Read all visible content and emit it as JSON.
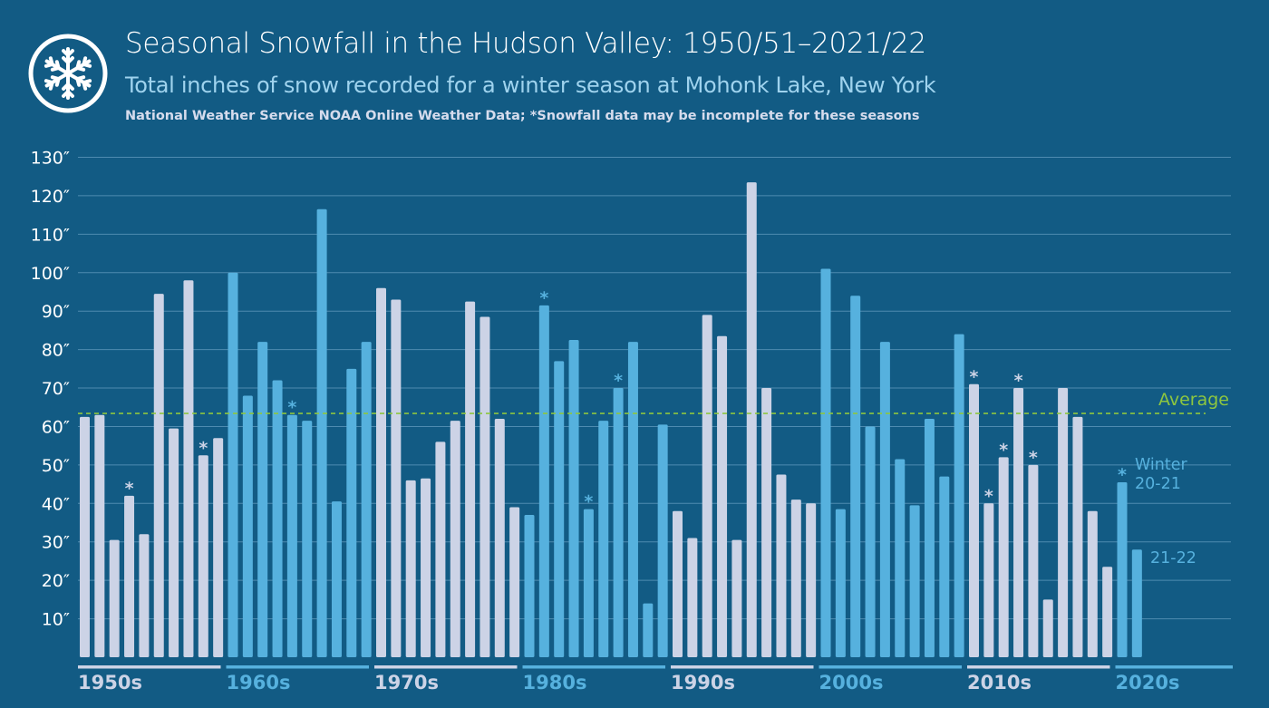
{
  "header": {
    "title": "Seasonal Snowfall in the Hudson Valley: 1950/51–2021/22",
    "subtitle": "Total inches of snow recorded for a winter season at Mohonk Lake, New York",
    "source": "National Weather Service NOAA Online Weather Data; *Snowfall data may be incomplete for these seasons",
    "logo_icon": "snowflake-icon"
  },
  "colors": {
    "background": "#125b84",
    "bar_light": "#ccd3e6",
    "bar_blue": "#56b1de",
    "average_line": "#8dc63f",
    "grid": "#4e8bb0",
    "axis_text": "#ffffff"
  },
  "chart_data": {
    "type": "bar",
    "y_ticks": [
      "10″",
      "20″",
      "30″",
      "40″",
      "50″",
      "60″",
      "70″",
      "80″",
      "90″",
      "100″",
      "110″",
      "120″",
      "130″"
    ],
    "y_tick_values": [
      10,
      20,
      30,
      40,
      50,
      60,
      70,
      80,
      90,
      100,
      110,
      120,
      130
    ],
    "ylim": [
      0,
      130
    ],
    "grid": true,
    "average": {
      "label": "Average",
      "value": 63.4
    },
    "decades": [
      {
        "label": "1950s",
        "color": "light",
        "values": [
          62.5,
          63,
          30.5,
          42,
          32,
          94.5,
          59.5,
          98,
          52.5,
          57
        ],
        "incomplete": [
          false,
          false,
          false,
          true,
          false,
          false,
          false,
          false,
          true,
          false
        ]
      },
      {
        "label": "1960s",
        "color": "blue",
        "values": [
          100,
          68,
          82,
          72,
          63,
          61.5,
          116.5,
          40.5,
          75,
          82
        ],
        "incomplete": [
          false,
          false,
          false,
          false,
          true,
          false,
          false,
          false,
          false,
          false
        ]
      },
      {
        "label": "1970s",
        "color": "light",
        "values": [
          96,
          93,
          46,
          46.5,
          56,
          61.5,
          92.5,
          88.5,
          62,
          39
        ],
        "incomplete": [
          false,
          false,
          false,
          false,
          false,
          false,
          false,
          false,
          false,
          false
        ]
      },
      {
        "label": "1980s",
        "color": "blue",
        "values": [
          37,
          91.5,
          77,
          82.5,
          38.5,
          61.5,
          70,
          82,
          14,
          60.5
        ],
        "incomplete": [
          false,
          true,
          false,
          false,
          true,
          false,
          true,
          false,
          false,
          false
        ]
      },
      {
        "label": "1990s",
        "color": "light",
        "values": [
          38,
          31,
          89,
          83.5,
          30.5,
          123.5,
          70,
          47.5,
          41,
          40
        ],
        "incomplete": [
          false,
          false,
          false,
          false,
          false,
          false,
          false,
          false,
          false,
          false
        ]
      },
      {
        "label": "2000s",
        "color": "blue",
        "values": [
          101,
          38.5,
          94,
          60,
          82,
          51.5,
          39.5,
          62,
          47,
          84
        ],
        "incomplete": [
          false,
          false,
          false,
          false,
          false,
          false,
          false,
          false,
          false,
          false
        ]
      },
      {
        "label": "2010s",
        "color": "light",
        "values": [
          71,
          40,
          52,
          70,
          50,
          15,
          70,
          62.5,
          38,
          23.5
        ],
        "incomplete": [
          true,
          true,
          true,
          true,
          true,
          false,
          false,
          false,
          false,
          false
        ]
      },
      {
        "label": "2020s",
        "color": "blue",
        "values": [
          45.5,
          28
        ],
        "incomplete": [
          true,
          false
        ]
      }
    ],
    "annotations": [
      {
        "text": "Winter",
        "series": "2020s",
        "index": 0
      },
      {
        "text": "20-21",
        "series": "2020s",
        "index": 0
      },
      {
        "text": "21-22",
        "series": "2020s",
        "index": 1
      }
    ],
    "incomplete_marker": "*"
  }
}
